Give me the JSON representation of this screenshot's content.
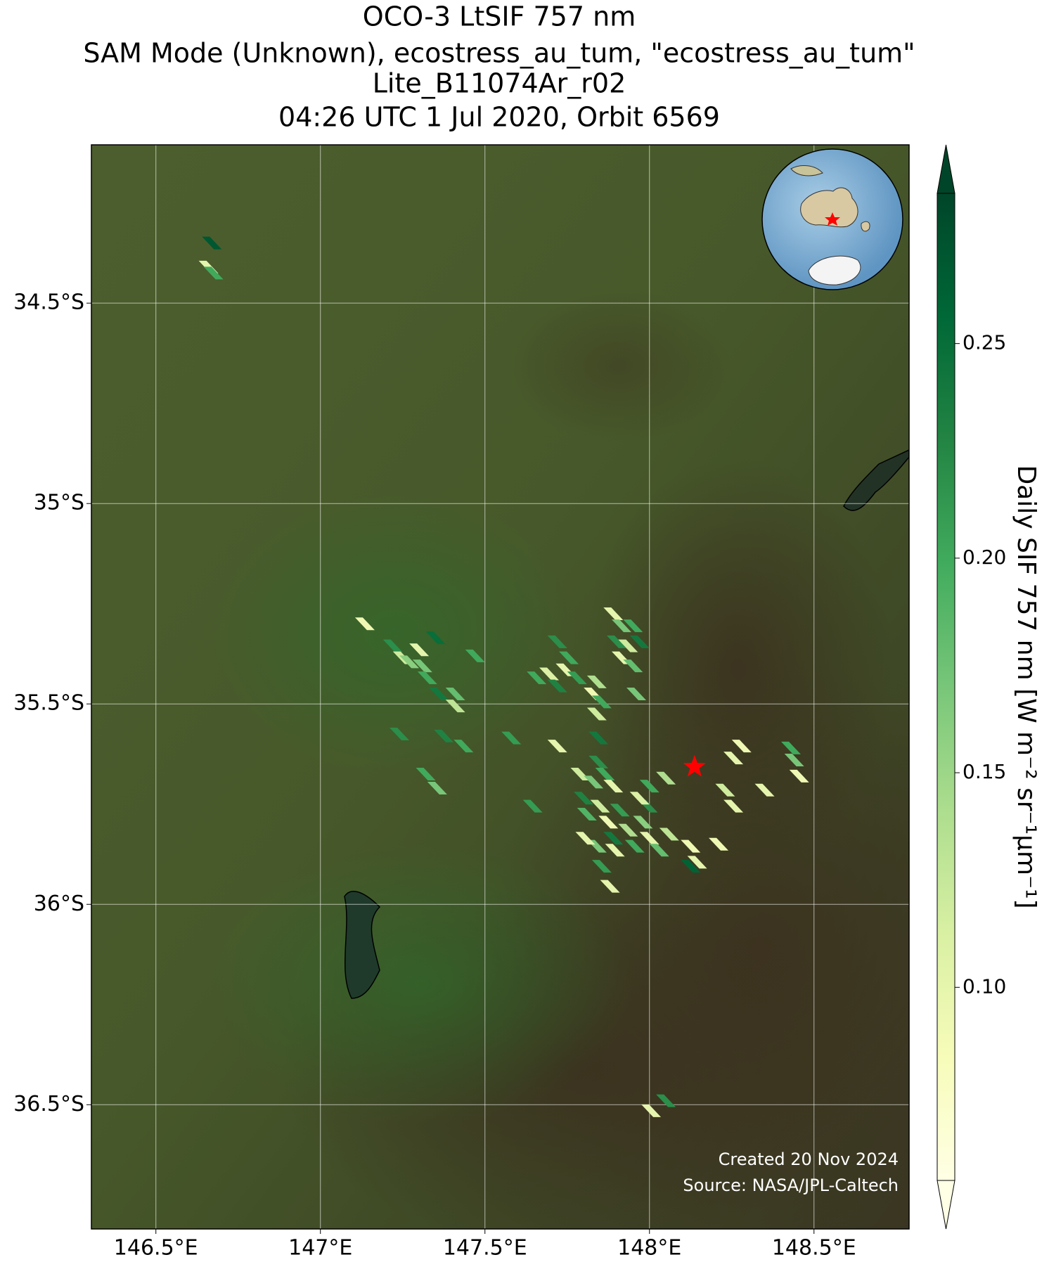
{
  "chart_data": {
    "type": "map",
    "title": [
      "OCO-3 LtSIF 757 nm",
      "SAM Mode (Unknown), ecostress_au_tum, \"ecostress_au_tum\"",
      "Lite_B11074Ar_r02",
      "04:26 UTC 1 Jul 2020, Orbit 6569"
    ],
    "xlim": [
      146.304,
      148.789
    ],
    "ylim": [
      -36.81,
      -34.105
    ],
    "xticks": [
      {
        "value": 146.5,
        "label": "146.5°E"
      },
      {
        "value": 147,
        "label": "147°E"
      },
      {
        "value": 147.5,
        "label": "147.5°E"
      },
      {
        "value": 148,
        "label": "148°E"
      },
      {
        "value": 148.5,
        "label": "148.5°E"
      }
    ],
    "yticks": [
      {
        "value": -34.5,
        "label": "34.5°S"
      },
      {
        "value": -35,
        "label": "35°S"
      },
      {
        "value": -35.5,
        "label": "35.5°S"
      },
      {
        "value": -36,
        "label": "36°S"
      },
      {
        "value": -36.5,
        "label": "36.5°S"
      }
    ],
    "grid": true,
    "colorbar_label": "Daily SIF 757 nm [W m⁻² sr⁻¹µm⁻¹]",
    "clim": [
      0.055,
      0.285
    ],
    "cticks": [
      {
        "value": 0.1,
        "label": "0.10"
      },
      0.15,
      {
        "value": 0.2,
        "label": "0.20"
      },
      0.25
    ],
    "colormap": [
      "#ffffe5",
      "#f7fcb9",
      "#d9f0a3",
      "#addd8e",
      "#78c679",
      "#41ab5d",
      "#238443",
      "#006837",
      "#004529"
    ],
    "site": {
      "x": 148.137,
      "y": -35.657,
      "color": "#ff0000"
    },
    "credits": [
      "Created 20 Nov 2024",
      "Source: NASA/JPL-Caltech"
    ],
    "x": [
      146.66,
      146.675,
      146.67,
      147.135,
      147.22,
      147.25,
      147.3,
      147.31,
      147.35,
      147.325,
      147.36,
      147.41,
      147.41,
      147.47,
      147.24,
      147.375,
      147.435,
      147.32,
      147.355,
      147.27,
      147.657,
      147.695,
      147.72,
      147.745,
      147.78,
      147.72,
      147.755,
      147.89,
      147.915,
      147.95,
      147.9,
      147.935,
      147.97,
      147.915,
      147.95,
      147.84,
      147.83,
      147.855,
      147.84,
      147.96,
      147.58,
      147.72,
      147.845,
      147.845,
      147.79,
      147.83,
      147.865,
      147.89,
      147.8,
      147.85,
      147.81,
      147.875,
      147.91,
      147.935,
      147.89,
      147.84,
      147.895,
      147.955,
      147.98,
      148.0,
      148.03,
      147.995,
      147.97,
      148.0,
      148.05,
      147.855,
      147.88,
      147.645,
      147.805,
      148.06,
      148.125,
      148.125,
      148.145,
      148.21,
      148.255,
      148.28,
      148.23,
      148.255,
      148.35,
      148.43,
      148.455,
      148.44,
      148.005,
      148.05
    ],
    "y": [
      -34.41,
      -34.425,
      -34.35,
      -35.3,
      -35.355,
      -35.385,
      -35.365,
      -35.405,
      -35.335,
      -35.435,
      -35.475,
      -35.475,
      -35.505,
      -35.38,
      -35.575,
      -35.58,
      -35.605,
      -35.675,
      -35.71,
      -35.395,
      -35.435,
      -35.425,
      -35.455,
      -35.415,
      -35.435,
      -35.345,
      -35.385,
      -35.275,
      -35.305,
      -35.305,
      -35.345,
      -35.355,
      -35.345,
      -35.385,
      -35.405,
      -35.445,
      -35.475,
      -35.495,
      -35.525,
      -35.475,
      -35.585,
      -35.605,
      -35.585,
      -35.645,
      -35.675,
      -35.695,
      -35.675,
      -35.705,
      -35.735,
      -35.755,
      -35.775,
      -35.795,
      -35.765,
      -35.815,
      -35.835,
      -35.855,
      -35.865,
      -35.855,
      -35.795,
      -35.835,
      -35.865,
      -35.755,
      -35.735,
      -35.705,
      -35.685,
      -35.905,
      -35.955,
      -35.755,
      -35.835,
      -35.825,
      -35.855,
      -35.905,
      -35.895,
      -35.85,
      -35.635,
      -35.605,
      -35.715,
      -35.755,
      -35.715,
      -35.61,
      -35.68,
      -35.64,
      -36.515,
      -36.49
    ],
    "values": [
      0.1,
      0.2,
      0.27,
      0.09,
      0.22,
      0.12,
      0.1,
      0.17,
      0.25,
      0.2,
      0.24,
      0.18,
      0.13,
      0.2,
      0.22,
      0.23,
      0.2,
      0.2,
      0.17,
      0.16,
      0.2,
      0.11,
      0.23,
      0.1,
      0.21,
      0.22,
      0.2,
      0.1,
      0.17,
      0.2,
      0.22,
      0.12,
      0.24,
      0.1,
      0.18,
      0.14,
      0.09,
      0.2,
      0.12,
      0.17,
      0.21,
      0.1,
      0.24,
      0.22,
      0.12,
      0.17,
      0.2,
      0.1,
      0.23,
      0.12,
      0.19,
      0.09,
      0.21,
      0.14,
      0.24,
      0.17,
      0.1,
      0.2,
      0.16,
      0.1,
      0.18,
      0.22,
      0.11,
      0.2,
      0.14,
      0.21,
      0.1,
      0.21,
      0.1,
      0.13,
      0.09,
      0.26,
      0.1,
      0.09,
      0.1,
      0.09,
      0.12,
      0.1,
      0.1,
      0.2,
      0.09,
      0.17,
      0.1,
      0.22
    ]
  }
}
